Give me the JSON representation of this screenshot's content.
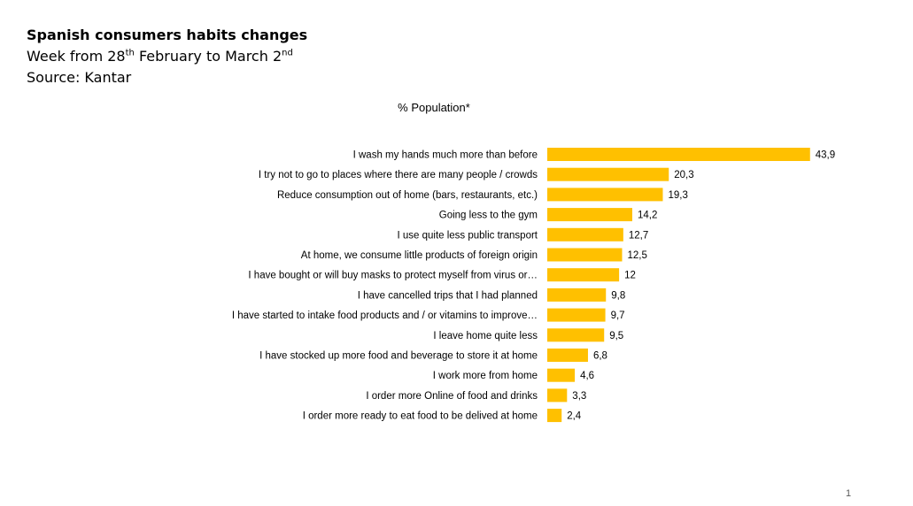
{
  "header": {
    "title": "Spanish consumers habits changes",
    "week_prefix": "Week from 28",
    "week_sup1": "th",
    "week_mid": " February to March 2",
    "week_sup2": "nd",
    "source": "Source: Kantar"
  },
  "page_number": "1",
  "colors": {
    "bar": "#FFC000",
    "text": "#000000"
  },
  "chart_data": {
    "type": "bar",
    "orientation": "horizontal",
    "title": "% Population*",
    "xlim": [
      0,
      50
    ],
    "grid": false,
    "legend": "none",
    "categories": [
      "I wash my hands much more than before",
      "I try not to go to places where there are many people / crowds",
      "Reduce consumption out of home (bars, restaurants, etc.)",
      "Going less to the gym",
      "I use quite less public transport",
      "At home, we consume little products of foreign origin",
      "I have bought or will buy masks to protect myself from virus or…",
      "I have cancelled trips that I had planned",
      "I have started to intake food products and / or vitamins to improve…",
      "I leave home quite less",
      "I have stocked up more food and beverage to store it at home",
      "I work more from home",
      "I order more Online of food and drinks",
      "I order more ready to eat food to be delived at home"
    ],
    "values": [
      43.9,
      20.3,
      19.3,
      14.2,
      12.7,
      12.5,
      12,
      9.8,
      9.7,
      9.5,
      6.8,
      4.6,
      3.3,
      2.4
    ],
    "value_labels": [
      "43,9",
      "20,3",
      "19,3",
      "14,2",
      "12,7",
      "12,5",
      "12",
      "9,8",
      "9,7",
      "9,5",
      "6,8",
      "4,6",
      "3,3",
      "2,4"
    ]
  }
}
